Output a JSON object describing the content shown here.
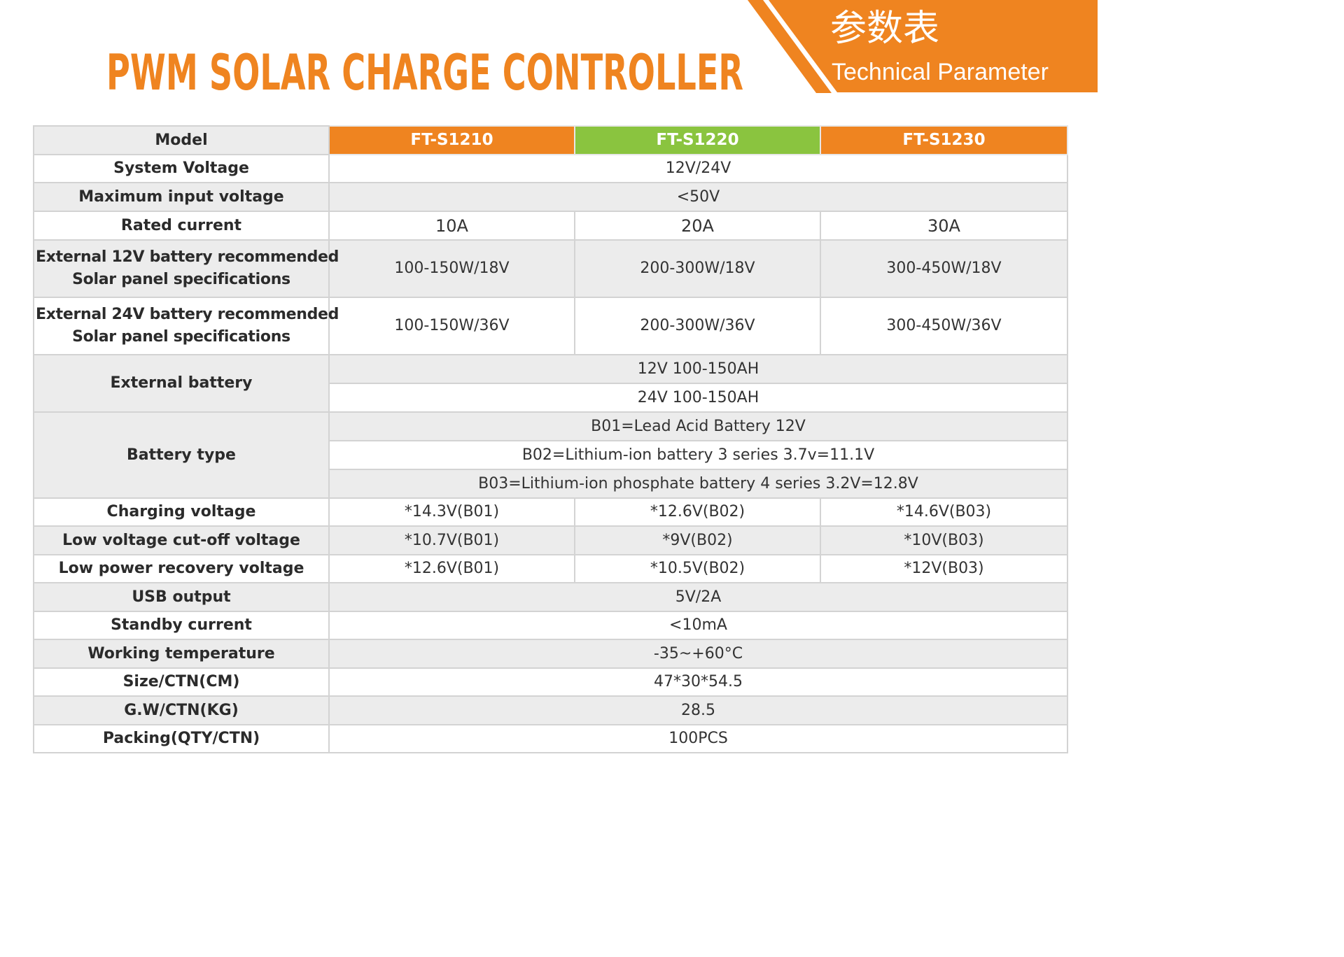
{
  "header": {
    "title": "PWM SOLAR CHARGE CONTROLLER",
    "banner_cn": "参数表",
    "banner_en": "Technical Parameter",
    "accent_color": "#ef8420",
    "green_color": "#8ac43f"
  },
  "table": {
    "model_label": "Model",
    "models": [
      "FT-S1210",
      "FT-S1220",
      "FT-S1230"
    ],
    "system_voltage": {
      "label": "System Voltage",
      "value": "12V/24V"
    },
    "max_input_voltage": {
      "label": "Maximum input voltage",
      "value": "<50V"
    },
    "rated_current": {
      "label": "Rated current",
      "values": [
        "10A",
        "20A",
        "30A"
      ]
    },
    "ext12": {
      "label_line1": "External 12V battery recommended",
      "label_line2": "Solar panel specifications",
      "values": [
        "100-150W/18V",
        "200-300W/18V",
        "300-450W/18V"
      ]
    },
    "ext24": {
      "label_line1": "External 24V battery recommended",
      "label_line2": "Solar panel specifications",
      "values": [
        "100-150W/36V",
        "200-300W/36V",
        "300-450W/36V"
      ]
    },
    "external_battery": {
      "label": "External battery",
      "values": [
        "12V 100-150AH",
        "24V 100-150AH"
      ]
    },
    "battery_type": {
      "label": "Battery type",
      "values": [
        "B01=Lead Acid Battery 12V",
        "B02=Lithium-ion battery 3 series 3.7v=11.1V",
        "B03=Lithium-ion phosphate battery 4 series 3.2V=12.8V"
      ]
    },
    "charging_voltage": {
      "label": "Charging voltage",
      "values": [
        "*14.3V(B01)",
        "*12.6V(B02)",
        "*14.6V(B03)"
      ]
    },
    "low_cutoff": {
      "label": "Low voltage cut-off voltage",
      "values": [
        "*10.7V(B01)",
        "*9V(B02)",
        "*10V(B03)"
      ]
    },
    "low_recovery": {
      "label": "Low power recovery voltage",
      "values": [
        "*12.6V(B01)",
        "*10.5V(B02)",
        "*12V(B03)"
      ]
    },
    "usb_output": {
      "label": "USB output",
      "value": "5V/2A"
    },
    "standby_current": {
      "label": "Standby current",
      "value": "<10mA"
    },
    "working_temp": {
      "label": "Working temperature",
      "value": "-35~+60°C"
    },
    "size_ctn": {
      "label": "Size/CTN(CM)",
      "value": "47*30*54.5"
    },
    "gw_ctn": {
      "label": "G.W/CTN(KG)",
      "value": "28.5"
    },
    "packing": {
      "label": "Packing(QTY/CTN)",
      "value": "100PCS"
    }
  }
}
